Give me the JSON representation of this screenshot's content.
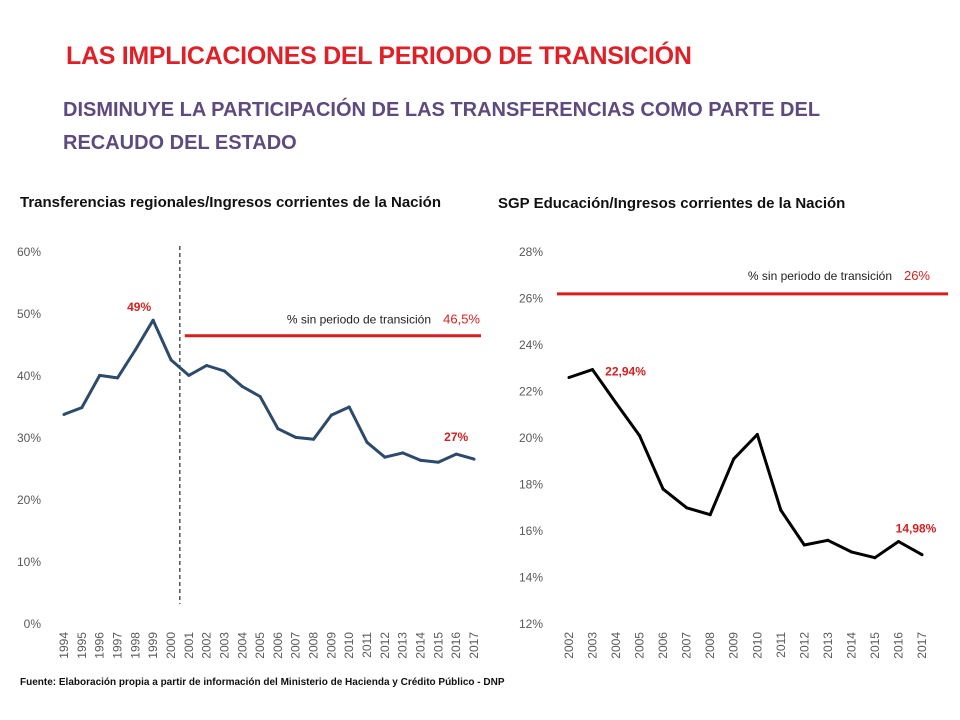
{
  "header": {
    "title": "LAS IMPLICACIONES DEL PERIODO DE TRANSICIÓN",
    "subtitle": "DISMINUYE LA PARTICIPACIÓN DE LAS TRANSFERENCIAS COMO PARTE DEL RECAUDO DEL ESTADO"
  },
  "footer": {
    "source": "Fuente: Elaboración propia a partir de información del Ministerio de Hacienda y Crédito Público - DNP"
  },
  "colors": {
    "title": "#e01f26",
    "subtitle": "#5e4a7e",
    "reference_line": "#d6201f",
    "line1": "#2c4a6b",
    "line2": "#000000",
    "annotation": "#d6201f"
  },
  "chart_data": [
    {
      "type": "line",
      "title": "Transferencias regionales/Ingresos corrientes de la Nación",
      "categories": [
        "1994",
        "1995",
        "1996",
        "1997",
        "1998",
        "1999",
        "2000",
        "2001",
        "2002",
        "2003",
        "2004",
        "2005",
        "2006",
        "2007",
        "2008",
        "2009",
        "2010",
        "2011",
        "2012",
        "2013",
        "2014",
        "2015",
        "2016",
        "2017"
      ],
      "series": [
        {
          "values": [
            33.8,
            34.9,
            40.1,
            39.7,
            44.2,
            49.0,
            42.6,
            40.1,
            41.7,
            40.8,
            38.3,
            36.7,
            31.5,
            30.1,
            29.8,
            33.7,
            35.0,
            29.3,
            26.9,
            27.6,
            26.4,
            26.1,
            27.4,
            26.6
          ]
        }
      ],
      "y_ticks": [
        "0%",
        "10%",
        "20%",
        "30%",
        "40%",
        "50%",
        "60%"
      ],
      "ylim": [
        0,
        60
      ],
      "reference_line": {
        "value": 46.5,
        "label": "% sin periodo de transición",
        "value_label": "46,5%",
        "start_category": "2001"
      },
      "divider_after": "2000",
      "annotations": [
        {
          "category": "1999",
          "text": "49%"
        },
        {
          "category": "2016",
          "text": "27%"
        }
      ],
      "grid": false
    },
    {
      "type": "line",
      "title": "SGP Educación/Ingresos corrientes de la Nación",
      "categories": [
        "2002",
        "2003",
        "2004",
        "2005",
        "2006",
        "2007",
        "2008",
        "2009",
        "2010",
        "2011",
        "2012",
        "2013",
        "2014",
        "2015",
        "2016",
        "2017"
      ],
      "series": [
        {
          "values": [
            22.6,
            22.94,
            21.5,
            20.1,
            17.8,
            17.0,
            16.7,
            19.1,
            20.15,
            16.9,
            15.4,
            15.6,
            15.1,
            14.85,
            15.55,
            14.98
          ]
        }
      ],
      "y_ticks": [
        "12%",
        "14%",
        "16%",
        "18%",
        "20%",
        "22%",
        "24%",
        "26%",
        "28%"
      ],
      "ylim": [
        12,
        28
      ],
      "reference_line": {
        "value": 26.2,
        "label": "% sin periodo de transición",
        "value_label": "26%"
      },
      "annotations": [
        {
          "category": "2003",
          "text": "22,94%"
        },
        {
          "category": "2017",
          "text": "14,98%"
        }
      ],
      "grid": false
    }
  ]
}
